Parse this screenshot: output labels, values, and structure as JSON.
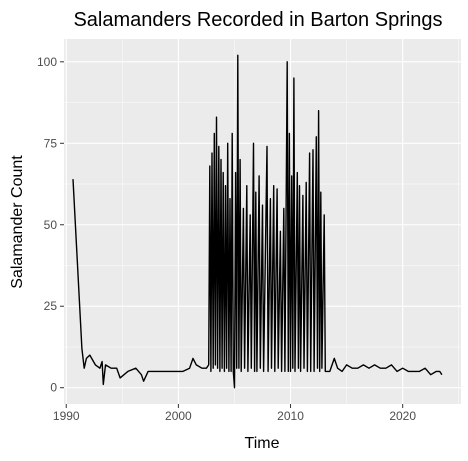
{
  "chart_data": {
    "type": "line",
    "title": "Salamanders Recorded in Barton Springs",
    "xlabel": "Time",
    "ylabel": "Salamander Count",
    "x_unit": "year",
    "xlim": [
      1989.8,
      2025.2
    ],
    "ylim": [
      -5,
      107
    ],
    "x_ticks": [
      1990,
      2000,
      2010,
      2020
    ],
    "x_tick_labels": [
      "1990",
      "2000",
      "2010",
      "2020"
    ],
    "y_ticks": [
      0,
      25,
      50,
      75,
      100
    ],
    "y_tick_labels": [
      "0",
      "25",
      "50",
      "75",
      "100"
    ],
    "grid": true,
    "legend": "none",
    "colors": {
      "panel_background": "#ebebeb",
      "grid_major": "#ffffff",
      "line": "#000000"
    },
    "series": [
      {
        "values": [
          [
            1990.6,
            64
          ],
          [
            1991.4,
            12
          ],
          [
            1991.6,
            6
          ],
          [
            1991.8,
            9
          ],
          [
            1992.1,
            10
          ],
          [
            1992.6,
            7
          ],
          [
            1993.0,
            6
          ],
          [
            1993.2,
            8
          ],
          [
            1993.3,
            1
          ],
          [
            1993.5,
            7
          ],
          [
            1994.0,
            6
          ],
          [
            1994.5,
            6
          ],
          [
            1994.8,
            3
          ],
          [
            1995.5,
            5
          ],
          [
            1996.2,
            6
          ],
          [
            1996.7,
            4
          ],
          [
            1996.9,
            2
          ],
          [
            1997.3,
            5
          ],
          [
            1998.5,
            5
          ],
          [
            2000.4,
            5
          ],
          [
            2001.0,
            6
          ],
          [
            2001.3,
            9
          ],
          [
            2001.6,
            7
          ],
          [
            2002.1,
            6
          ],
          [
            2002.5,
            6
          ],
          [
            2002.7,
            7
          ],
          [
            2002.8,
            68
          ],
          [
            2002.9,
            5
          ],
          [
            2003.0,
            72
          ],
          [
            2003.1,
            6
          ],
          [
            2003.2,
            78
          ],
          [
            2003.3,
            7
          ],
          [
            2003.4,
            83
          ],
          [
            2003.5,
            6
          ],
          [
            2003.6,
            74
          ],
          [
            2003.7,
            5
          ],
          [
            2003.8,
            70
          ],
          [
            2003.9,
            6
          ],
          [
            2004.0,
            66
          ],
          [
            2004.1,
            5
          ],
          [
            2004.2,
            62
          ],
          [
            2004.3,
            6
          ],
          [
            2004.4,
            75
          ],
          [
            2004.5,
            5
          ],
          [
            2004.6,
            58
          ],
          [
            2004.7,
            5
          ],
          [
            2004.8,
            78
          ],
          [
            2004.9,
            5
          ],
          [
            2005.0,
            0
          ],
          [
            2005.1,
            66
          ],
          [
            2005.2,
            6
          ],
          [
            2005.3,
            102
          ],
          [
            2005.4,
            6
          ],
          [
            2005.5,
            70
          ],
          [
            2005.6,
            5
          ],
          [
            2005.8,
            55
          ],
          [
            2005.9,
            6
          ],
          [
            2006.1,
            62
          ],
          [
            2006.2,
            5
          ],
          [
            2006.4,
            53
          ],
          [
            2006.5,
            6
          ],
          [
            2006.7,
            75
          ],
          [
            2006.8,
            5
          ],
          [
            2006.9,
            60
          ],
          [
            2007.0,
            5
          ],
          [
            2007.2,
            65
          ],
          [
            2007.3,
            6
          ],
          [
            2007.5,
            56
          ],
          [
            2007.6,
            5
          ],
          [
            2007.9,
            74
          ],
          [
            2008.0,
            5
          ],
          [
            2008.2,
            58
          ],
          [
            2008.3,
            6
          ],
          [
            2008.5,
            62
          ],
          [
            2008.6,
            5
          ],
          [
            2008.8,
            61
          ],
          [
            2008.9,
            6
          ],
          [
            2009.1,
            48
          ],
          [
            2009.2,
            5
          ],
          [
            2009.4,
            55
          ],
          [
            2009.5,
            5
          ],
          [
            2009.7,
            100
          ],
          [
            2009.8,
            5
          ],
          [
            2009.9,
            78
          ],
          [
            2010.0,
            5
          ],
          [
            2010.1,
            65
          ],
          [
            2010.2,
            6
          ],
          [
            2010.3,
            95
          ],
          [
            2010.4,
            5
          ],
          [
            2010.6,
            66
          ],
          [
            2010.7,
            6
          ],
          [
            2010.8,
            62
          ],
          [
            2010.9,
            5
          ],
          [
            2011.1,
            59
          ],
          [
            2011.2,
            6
          ],
          [
            2011.4,
            63
          ],
          [
            2011.5,
            5
          ],
          [
            2011.7,
            72
          ],
          [
            2011.8,
            5
          ],
          [
            2012.0,
            73
          ],
          [
            2012.1,
            5
          ],
          [
            2012.3,
            77
          ],
          [
            2012.4,
            6
          ],
          [
            2012.5,
            85
          ],
          [
            2012.6,
            5
          ],
          [
            2012.7,
            60
          ],
          [
            2012.8,
            6
          ],
          [
            2013.0,
            53
          ],
          [
            2013.1,
            5
          ],
          [
            2013.5,
            5
          ],
          [
            2013.9,
            9
          ],
          [
            2014.2,
            6
          ],
          [
            2014.6,
            5
          ],
          [
            2015.0,
            7
          ],
          [
            2015.5,
            6
          ],
          [
            2016.0,
            6
          ],
          [
            2016.5,
            7
          ],
          [
            2017.0,
            6
          ],
          [
            2017.5,
            7
          ],
          [
            2018.0,
            6
          ],
          [
            2018.5,
            6
          ],
          [
            2019.0,
            7
          ],
          [
            2019.5,
            5
          ],
          [
            2020.0,
            6
          ],
          [
            2020.5,
            5
          ],
          [
            2021.0,
            5
          ],
          [
            2021.5,
            5
          ],
          [
            2022.0,
            6
          ],
          [
            2022.5,
            4
          ],
          [
            2023.0,
            5
          ],
          [
            2023.3,
            5
          ],
          [
            2023.5,
            4
          ]
        ]
      }
    ]
  }
}
